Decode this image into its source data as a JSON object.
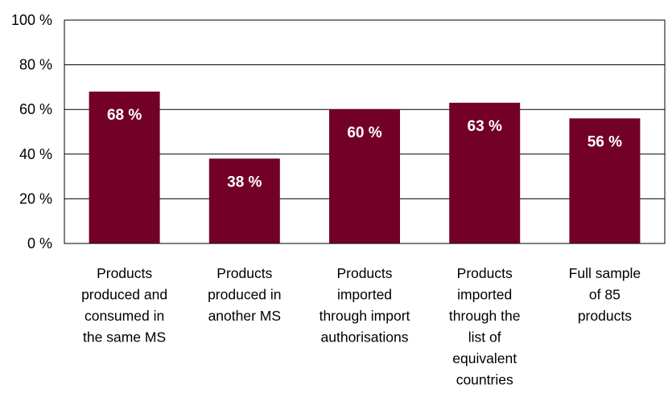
{
  "chart_data": {
    "type": "bar",
    "categories": [
      [
        "Products",
        "produced and",
        "consumed in",
        "the same MS"
      ],
      [
        "Products",
        "produced in",
        "another MS"
      ],
      [
        "Products",
        "imported",
        "through import",
        "authorisations"
      ],
      [
        "Products",
        "imported",
        "through the",
        "list of",
        "equivalent",
        "countries"
      ],
      [
        "Full sample",
        "of 85",
        "products"
      ]
    ],
    "values": [
      68,
      38,
      60,
      63,
      56
    ],
    "data_labels": [
      "68 %",
      "38 %",
      "60 %",
      "63 %",
      "56 %"
    ],
    "ylim": [
      0,
      100
    ],
    "yticks": [
      0,
      20,
      40,
      60,
      80,
      100
    ],
    "ytick_labels": [
      "0 %",
      "20 %",
      "40 %",
      "60 %",
      "80 %",
      "100 %"
    ],
    "title": "",
    "xlabel": "",
    "ylabel": "",
    "grid": true,
    "bar_color": "#730027",
    "grid_color": "#000000"
  }
}
